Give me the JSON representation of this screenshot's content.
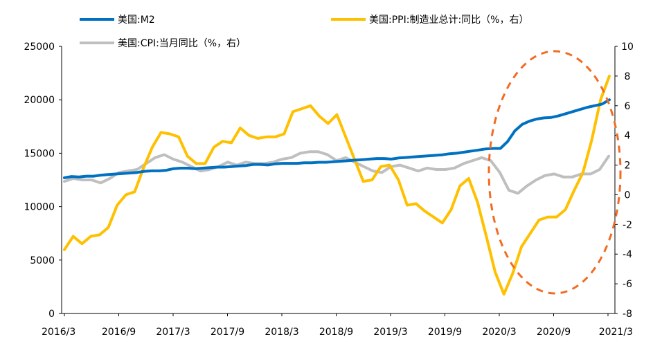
{
  "chart_data": {
    "type": "line",
    "title": "",
    "x_tick_labels": [
      "2016/3",
      "2016/9",
      "2017/3",
      "2017/9",
      "2018/3",
      "2018/9",
      "2019/3",
      "2019/9",
      "2020/3",
      "2020/9",
      "2021/3"
    ],
    "y_left": {
      "label": "",
      "ylim": [
        0,
        25000
      ],
      "ticks": [
        "0",
        "5000",
        "10000",
        "15000",
        "20000",
        "25000"
      ]
    },
    "y_right": {
      "label": "",
      "ylim": [
        -8,
        10
      ],
      "ticks": [
        "-8",
        "-6",
        "-4",
        "-2",
        "0",
        "2",
        "4",
        "6",
        "8",
        "10"
      ]
    },
    "legend": {
      "placement": "top"
    },
    "annotation": {
      "shape": "dashed-ellipse",
      "color": "#F26B21",
      "range": [
        "2020/3",
        "2021/3"
      ]
    },
    "series": [
      {
        "name": "美国:M2",
        "axis": "left",
        "color": "#0070C0",
        "values": [
          12700,
          12820,
          12780,
          12850,
          12850,
          12950,
          13000,
          13050,
          13100,
          13150,
          13200,
          13300,
          13350,
          13350,
          13400,
          13550,
          13600,
          13600,
          13550,
          13600,
          13650,
          13700,
          13700,
          13750,
          13800,
          13850,
          13950,
          13950,
          13900,
          14000,
          14050,
          14050,
          14050,
          14100,
          14100,
          14150,
          14150,
          14200,
          14250,
          14300,
          14350,
          14400,
          14450,
          14500,
          14500,
          14450,
          14550,
          14600,
          14650,
          14700,
          14750,
          14800,
          14850,
          14950,
          15000,
          15100,
          15200,
          15300,
          15400,
          15450,
          15450,
          16100,
          17100,
          17700,
          18000,
          18200,
          18300,
          18350,
          18500,
          18700,
          18900,
          19100,
          19300,
          19450,
          19600,
          20000
        ]
      },
      {
        "name": "美国:PPI:制造业总计:同比（%，右）",
        "axis": "right",
        "color": "#FFC000",
        "values": [
          -3.7,
          -2.8,
          -3.3,
          -2.8,
          -2.7,
          -2.2,
          -0.7,
          0,
          0.2,
          1.8,
          3.2,
          4.2,
          4.1,
          3.9,
          2.6,
          2.1,
          2.1,
          3.2,
          3.6,
          3.5,
          4.5,
          4.0,
          3.8,
          3.9,
          3.9,
          4.1,
          5.6,
          5.8,
          6.0,
          5.3,
          4.8,
          5.4,
          3.9,
          2.4,
          0.9,
          1.0,
          1.9,
          2.0,
          1.0,
          -0.7,
          -0.6,
          -1.1,
          -1.5,
          -1.9,
          -1.0,
          0.6,
          1.1,
          -0.5,
          -2.8,
          -5.2,
          -6.7,
          -5.3,
          -3.5,
          -2.6,
          -1.7,
          -1.5,
          -1.5,
          -1.0,
          0.3,
          1.5,
          3.7,
          6.4,
          8.0
        ]
      },
      {
        "name": "美国:CPI:当月同比（%，右）",
        "axis": "right",
        "color": "#BFBFBF",
        "values": [
          0.9,
          1.1,
          1.0,
          1.0,
          0.8,
          1.1,
          1.5,
          1.6,
          1.7,
          2.1,
          2.5,
          2.7,
          2.4,
          2.2,
          1.9,
          1.6,
          1.7,
          1.9,
          2.2,
          2.0,
          2.2,
          2.1,
          2.1,
          2.2,
          2.4,
          2.5,
          2.8,
          2.9,
          2.9,
          2.7,
          2.3,
          2.5,
          2.2,
          1.9,
          1.6,
          1.5,
          1.9,
          2.0,
          1.8,
          1.6,
          1.8,
          1.7,
          1.7,
          1.8,
          2.1,
          2.3,
          2.5,
          2.3,
          1.5,
          0.3,
          0.1,
          0.6,
          1.0,
          1.3,
          1.4,
          1.2,
          1.2,
          1.4,
          1.4,
          1.7,
          2.6
        ]
      }
    ]
  }
}
